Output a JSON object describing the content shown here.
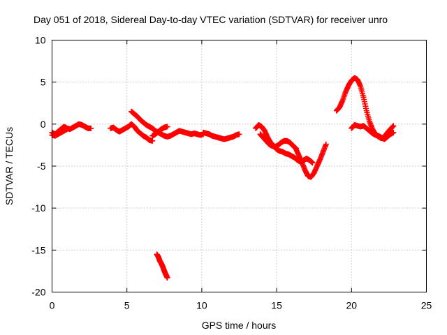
{
  "chart_data": {
    "type": "scatter",
    "title": "Day 051 of 2018, Sidereal Day-to-day VTEC variation (SDTVAR) for receiver unro",
    "xlabel": "GPS time / hours",
    "ylabel": "SDTVAR / TECUs",
    "xlim": [
      0,
      25
    ],
    "ylim": [
      -20,
      10
    ],
    "xticks": [
      0,
      5,
      10,
      15,
      20,
      25
    ],
    "yticks": [
      -20,
      -15,
      -10,
      -5,
      0,
      5,
      10
    ],
    "grid": true,
    "marker": "+",
    "color": "#ff0000",
    "series": [
      {
        "name": "SDTVAR",
        "segments": [
          {
            "x": [
              0.0,
              0.2,
              0.4,
              0.6,
              0.8,
              1.0,
              1.2,
              1.4,
              1.6,
              1.8,
              2.0,
              2.2,
              2.4,
              2.6
            ],
            "y": [
              -1.0,
              -1.2,
              -0.9,
              -0.6,
              -0.3,
              -0.5,
              -0.6,
              -0.4,
              -0.2,
              0.0,
              -0.1,
              -0.3,
              -0.5,
              -0.5
            ]
          },
          {
            "x": [
              0.0,
              0.2,
              0.4,
              0.6,
              0.8,
              1.0
            ],
            "y": [
              -1.3,
              -1.4,
              -1.2,
              -1.0,
              -0.8,
              -0.6
            ]
          },
          {
            "x": [
              3.9,
              4.1,
              4.3,
              4.5,
              4.7,
              4.9,
              5.1,
              5.3,
              5.5,
              5.7,
              5.9,
              6.1,
              6.3,
              6.5,
              6.7
            ],
            "y": [
              -0.5,
              -0.4,
              -0.7,
              -0.9,
              -0.7,
              -0.5,
              -0.3,
              0.0,
              -0.3,
              -0.8,
              -1.1,
              -1.4,
              -1.6,
              -1.9,
              -2.0
            ]
          },
          {
            "x": [
              6.7,
              6.9,
              7.1,
              7.3,
              7.5,
              7.7
            ],
            "y": [
              -1.4,
              -1.2,
              -0.9,
              -0.6,
              -0.4,
              -0.3
            ]
          },
          {
            "x": [
              5.3,
              5.5,
              5.7,
              5.9,
              6.1,
              6.3,
              6.5,
              6.7,
              6.9,
              7.1,
              7.3,
              7.5,
              7.7,
              7.9,
              8.1,
              8.3,
              8.5,
              8.7,
              8.9,
              9.1,
              9.3,
              9.5,
              9.7,
              9.9,
              10.1
            ],
            "y": [
              1.5,
              1.2,
              0.9,
              0.5,
              0.2,
              -0.1,
              -0.3,
              -0.5,
              -0.8,
              -1.0,
              -1.2,
              -1.4,
              -1.5,
              -1.4,
              -1.2,
              -1.0,
              -0.8,
              -0.9,
              -1.0,
              -1.1,
              -1.2,
              -1.1,
              -1.2,
              -1.3,
              -1.2
            ]
          },
          {
            "x": [
              10.1,
              10.3,
              10.5,
              10.7,
              10.9,
              11.1,
              11.3,
              11.5,
              11.7,
              11.9,
              12.1,
              12.3,
              12.5
            ],
            "y": [
              -1.0,
              -1.1,
              -1.2,
              -1.4,
              -1.5,
              -1.6,
              -1.7,
              -1.8,
              -1.7,
              -1.6,
              -1.5,
              -1.3,
              -1.2
            ]
          },
          {
            "x": [
              7.0,
              7.1,
              7.2,
              7.3,
              7.4,
              7.5,
              7.6,
              7.7
            ],
            "y": [
              -15.5,
              -15.8,
              -16.3,
              -16.6,
              -17.0,
              -17.5,
              -17.9,
              -18.3
            ]
          },
          {
            "x": [
              13.6,
              13.8,
              14.0,
              14.2,
              14.4,
              14.6,
              14.8,
              15.0,
              15.2,
              15.4,
              15.6,
              15.8,
              16.0,
              16.2,
              16.4,
              16.6
            ],
            "y": [
              -0.5,
              -0.1,
              -0.3,
              -0.8,
              -1.6,
              -2.2,
              -2.6,
              -3.0,
              -3.2,
              -3.3,
              -3.5,
              -3.6,
              -3.8,
              -4.0,
              -4.3,
              -4.5
            ]
          },
          {
            "x": [
              13.9,
              14.1,
              14.3,
              14.5,
              14.7,
              14.9,
              15.1,
              15.3,
              15.5,
              15.7,
              15.9,
              16.1,
              16.3
            ],
            "y": [
              -1.2,
              -1.6,
              -2.0,
              -2.4,
              -2.6,
              -2.7,
              -2.5,
              -2.2,
              -2.0,
              -2.0,
              -2.2,
              -2.6,
              -2.9
            ]
          },
          {
            "x": [
              16.3,
              16.5,
              16.7,
              16.9,
              17.1,
              17.3,
              17.5,
              17.7,
              17.9,
              18.1,
              18.3
            ],
            "y": [
              -3.0,
              -3.8,
              -4.6,
              -5.5,
              -6.2,
              -6.3,
              -5.8,
              -5.0,
              -4.2,
              -3.3,
              -2.4
            ]
          },
          {
            "x": [
              16.8,
              17.0,
              17.2,
              17.4
            ],
            "y": [
              -4.3,
              -4.1,
              -4.3,
              -4.6
            ]
          },
          {
            "x": [
              19.0,
              19.2,
              19.4,
              19.6,
              19.8,
              20.0,
              20.2,
              20.4,
              20.6,
              20.8,
              21.0,
              21.2,
              21.4,
              21.6,
              21.8,
              22.0,
              22.2,
              22.4,
              22.6,
              22.8
            ],
            "y": [
              1.6,
              2.0,
              2.8,
              3.8,
              4.6,
              5.2,
              5.5,
              5.3,
              4.5,
              3.2,
              1.6,
              0.3,
              -0.6,
              -1.2,
              -1.5,
              -1.7,
              -1.5,
              -1.0,
              -0.6,
              -0.2
            ]
          },
          {
            "x": [
              20.0,
              20.2,
              20.4,
              20.6,
              20.8,
              21.0,
              21.2,
              21.4,
              21.6,
              21.8,
              22.0,
              22.2,
              22.4,
              22.6,
              22.8
            ],
            "y": [
              -0.5,
              -0.1,
              -0.2,
              -0.3,
              -0.2,
              -0.5,
              -0.8,
              -1.1,
              -1.3,
              -1.4,
              -1.6,
              -1.8,
              -1.5,
              -1.2,
              -1.0
            ]
          }
        ]
      }
    ]
  }
}
